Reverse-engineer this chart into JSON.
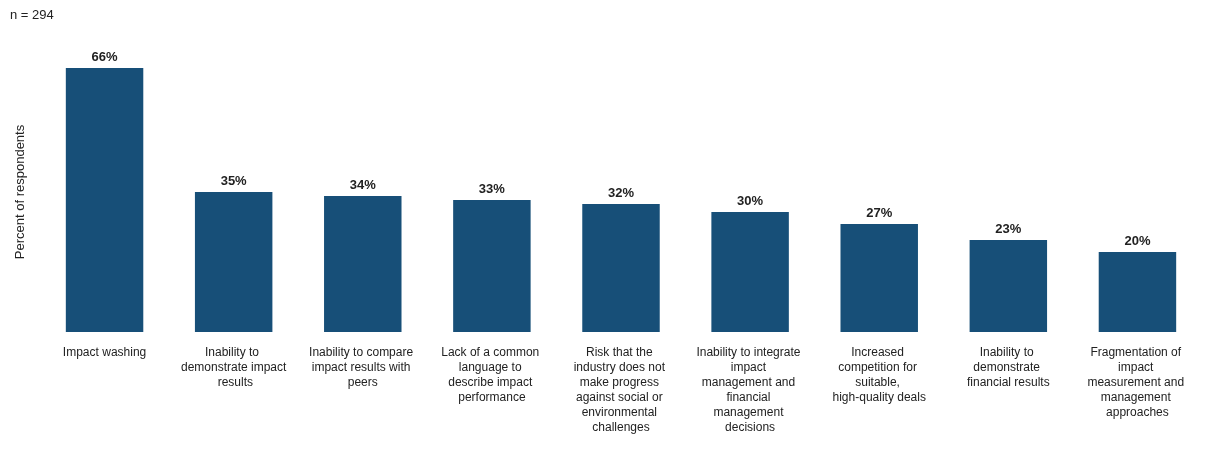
{
  "chart_data": {
    "type": "bar",
    "ylabel": "Percent of respondents",
    "annotations": [
      "n = 294"
    ],
    "categories": [
      "Impact washing",
      "Inability to demonstrate impact results",
      "Inability to compare impact results with peers",
      "Lack of a common language to describe impact performance",
      "Risk that the industry does not make progress against social or environmental challenges",
      "Inability to integrate impact management and financial management decisions",
      "Increased competition for suitable, high-quality deals",
      "Inability to demonstrate financial results",
      "Fragmentation of impact measurement and management approaches"
    ],
    "values": [
      66,
      35,
      34,
      33,
      32,
      30,
      27,
      23,
      20
    ],
    "value_labels": [
      "66%",
      "35%",
      "34%",
      "33%",
      "32%",
      "30%",
      "27%",
      "23%",
      "20%"
    ],
    "color": "#174f78",
    "grid": false
  }
}
